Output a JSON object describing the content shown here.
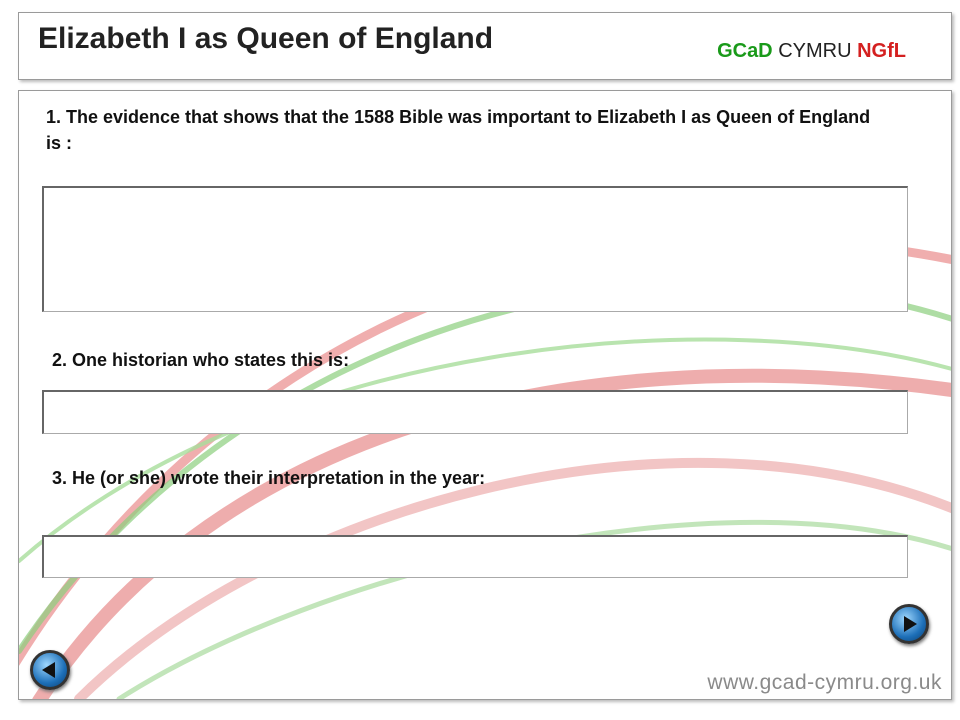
{
  "header": {
    "title": "Elizabeth I as Queen of England",
    "logo": {
      "gcad": "GCaD",
      "cymru": "CYMRU",
      "ngfl": "NGfL"
    }
  },
  "questions": [
    {
      "text": "1. The evidence that shows that the 1588 Bible was important to Elizabeth I as Queen of England is :"
    },
    {
      "text": "2. One historian who states this is:"
    },
    {
      "text": "3. He (or she) wrote their interpretation in the year:"
    }
  ],
  "footer": {
    "url": "www.gcad-cymru.org.uk"
  }
}
